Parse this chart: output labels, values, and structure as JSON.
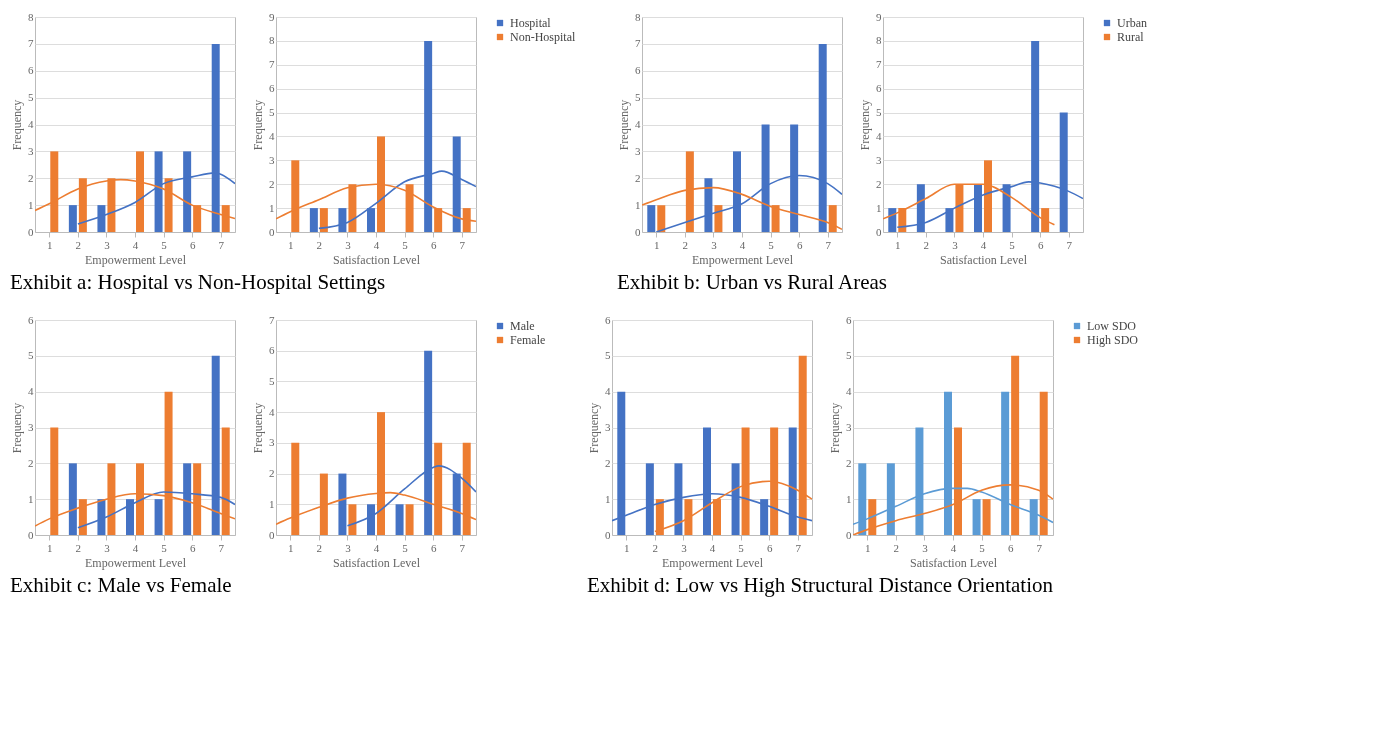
{
  "chart_data": [
    {
      "type": "bar",
      "xlabel": "Empowerment Level",
      "ylabel": "Frequency",
      "x": [
        1,
        2,
        3,
        4,
        5,
        6,
        7
      ],
      "xlim": [
        0.5,
        7.5
      ],
      "xticks": [
        1,
        2,
        3,
        4,
        5,
        6,
        7
      ],
      "ylim": [
        0,
        8
      ],
      "yticks": [
        0,
        1,
        2,
        3,
        4,
        5,
        6,
        7,
        8
      ],
      "grid": "y",
      "annotations": [
        "Exhibit a: Hospital vs Non-Hospital Settings"
      ],
      "series": [
        {
          "color": "#4472c4",
          "values": [
            null,
            1,
            1,
            null,
            3,
            3,
            7
          ]
        },
        {
          "color": "#ed7d31",
          "values": [
            3,
            2,
            2,
            3,
            2,
            1,
            1
          ]
        },
        {
          "type": "line",
          "color": "#4472c4",
          "x": [
            2,
            3,
            4,
            5,
            6,
            6.8,
            7,
            7.5
          ],
          "values": [
            0.3,
            0.65,
            1.1,
            1.8,
            2.05,
            2.2,
            2.15,
            1.8
          ]
        },
        {
          "type": "line",
          "color": "#ed7d31",
          "x": [
            0.5,
            1,
            2,
            3,
            3.5,
            4,
            5,
            6,
            7,
            7.5
          ],
          "values": [
            0.8,
            1.05,
            1.6,
            1.9,
            1.95,
            1.9,
            1.6,
            1.0,
            0.65,
            0.5
          ]
        }
      ]
    },
    {
      "type": "bar",
      "xlabel": "Satisfaction Level",
      "ylabel": "Frequency",
      "x": [
        1,
        2,
        3,
        4,
        5,
        6,
        7
      ],
      "xlim": [
        0.5,
        7.5
      ],
      "xticks": [
        1,
        2,
        3,
        4,
        5,
        6,
        7
      ],
      "ylim": [
        0,
        9
      ],
      "yticks": [
        0,
        1,
        2,
        3,
        4,
        5,
        6,
        7,
        8,
        9
      ],
      "grid": "y",
      "legend": "right",
      "series": [
        {
          "name": "Hospital",
          "color": "#4472c4",
          "values": [
            null,
            1,
            1,
            1,
            null,
            8,
            4
          ]
        },
        {
          "name": "Non-Hospital",
          "color": "#ed7d31",
          "values": [
            3,
            1,
            2,
            4,
            2,
            1,
            1
          ]
        },
        {
          "type": "line",
          "color": "#4472c4",
          "x": [
            2,
            3,
            4,
            5,
            6,
            6.3,
            7,
            7.5
          ],
          "values": [
            0.15,
            0.4,
            1.2,
            2.1,
            2.45,
            2.55,
            2.2,
            1.9
          ]
        },
        {
          "type": "line",
          "color": "#ed7d31",
          "x": [
            0.5,
            1,
            2,
            3,
            4,
            5,
            6,
            7,
            7.5
          ],
          "values": [
            0.55,
            0.85,
            1.35,
            1.85,
            2.0,
            1.75,
            1.05,
            0.55,
            0.45
          ]
        }
      ]
    },
    {
      "type": "bar",
      "xlabel": "Empowerment Level",
      "ylabel": "Frequency",
      "x": [
        1,
        2,
        3,
        4,
        5,
        6,
        7
      ],
      "xlim": [
        0.5,
        7.5
      ],
      "xticks": [
        1,
        2,
        3,
        4,
        5,
        6,
        7
      ],
      "ylim": [
        0,
        8
      ],
      "yticks": [
        0,
        1,
        2,
        3,
        4,
        5,
        6,
        7,
        8
      ],
      "grid": "y",
      "annotations": [
        "Exhibit b: Urban vs Rural Areas"
      ],
      "series": [
        {
          "color": "#4472c4",
          "values": [
            1,
            null,
            2,
            3,
            4,
            4,
            7
          ]
        },
        {
          "color": "#ed7d31",
          "values": [
            1,
            3,
            1,
            null,
            1,
            null,
            1
          ]
        },
        {
          "type": "line",
          "color": "#4472c4",
          "x": [
            1,
            2,
            3,
            4,
            5,
            6,
            7,
            7.5
          ],
          "values": [
            0.0,
            0.35,
            0.7,
            1.05,
            1.8,
            2.1,
            1.8,
            1.4
          ]
        },
        {
          "type": "line",
          "color": "#ed7d31",
          "x": [
            0.5,
            1,
            2,
            3,
            4,
            5,
            6,
            7,
            7.5
          ],
          "values": [
            1.0,
            1.2,
            1.55,
            1.65,
            1.4,
            0.95,
            0.65,
            0.35,
            0.1
          ]
        }
      ]
    },
    {
      "type": "bar",
      "xlabel": "Satisfaction Level",
      "ylabel": "Frequency",
      "x": [
        1,
        2,
        3,
        4,
        5,
        6,
        7
      ],
      "xlim": [
        0.5,
        7.5
      ],
      "xticks": [
        1,
        2,
        3,
        4,
        5,
        6,
        7
      ],
      "ylim": [
        0,
        9
      ],
      "yticks": [
        0,
        1,
        2,
        3,
        4,
        5,
        6,
        7,
        8,
        9
      ],
      "grid": "y",
      "legend": "right",
      "series": [
        {
          "name": "Urban",
          "color": "#4472c4",
          "values": [
            1,
            2,
            1,
            2,
            2,
            8,
            5
          ]
        },
        {
          "name": "Rural",
          "color": "#ed7d31",
          "values": [
            1,
            null,
            2,
            3,
            null,
            1,
            null
          ]
        },
        {
          "type": "line",
          "color": "#4472c4",
          "x": [
            1,
            2,
            3,
            4,
            5,
            5.6,
            6,
            7,
            7.5
          ],
          "values": [
            0.2,
            0.4,
            1.0,
            1.55,
            1.9,
            2.1,
            2.05,
            1.7,
            1.4
          ]
        },
        {
          "type": "line",
          "color": "#ed7d31",
          "x": [
            0.5,
            1,
            2,
            3,
            4,
            5,
            6,
            6.5
          ],
          "values": [
            0.55,
            0.8,
            1.4,
            2.0,
            2.0,
            1.45,
            0.6,
            0.3
          ]
        }
      ]
    },
    {
      "type": "bar",
      "xlabel": "Empowerment Level",
      "ylabel": "Frequency",
      "x": [
        1,
        2,
        3,
        4,
        5,
        6,
        7
      ],
      "xlim": [
        0.5,
        7.5
      ],
      "xticks": [
        1,
        2,
        3,
        4,
        5,
        6,
        7
      ],
      "ylim": [
        0,
        6
      ],
      "yticks": [
        0,
        1,
        2,
        3,
        4,
        5,
        6
      ],
      "grid": "y",
      "annotations": [
        "Exhibit c: Male vs Female"
      ],
      "series": [
        {
          "color": "#4472c4",
          "values": [
            null,
            2,
            1,
            1,
            1,
            2,
            5
          ]
        },
        {
          "color": "#ed7d31",
          "values": [
            3,
            1,
            2,
            2,
            4,
            2,
            3
          ]
        },
        {
          "type": "line",
          "color": "#4472c4",
          "x": [
            2,
            3,
            4,
            5,
            6,
            7,
            7.5
          ],
          "values": [
            0.2,
            0.5,
            0.9,
            1.2,
            1.15,
            1.05,
            0.85
          ]
        },
        {
          "type": "line",
          "color": "#ed7d31",
          "x": [
            0.5,
            1,
            2,
            3,
            4,
            5,
            6,
            7,
            7.5
          ],
          "values": [
            0.25,
            0.45,
            0.75,
            1.0,
            1.15,
            1.1,
            0.9,
            0.6,
            0.45
          ]
        }
      ]
    },
    {
      "type": "bar",
      "xlabel": "Satisfaction Level",
      "ylabel": "Frequency",
      "x": [
        1,
        2,
        3,
        4,
        5,
        6,
        7
      ],
      "xlim": [
        0.5,
        7.5
      ],
      "xticks": [
        1,
        2,
        3,
        4,
        5,
        6,
        7
      ],
      "ylim": [
        0,
        7
      ],
      "yticks": [
        0,
        1,
        2,
        3,
        4,
        5,
        6,
        7
      ],
      "grid": "y",
      "legend": "right",
      "series": [
        {
          "name": "Male",
          "color": "#4472c4",
          "values": [
            null,
            null,
            2,
            1,
            1,
            6,
            2
          ]
        },
        {
          "name": "Female",
          "color": "#ed7d31",
          "values": [
            3,
            2,
            1,
            4,
            1,
            3,
            3
          ]
        },
        {
          "type": "line",
          "color": "#4472c4",
          "x": [
            3,
            4,
            5,
            6,
            6.2,
            7,
            7.5
          ],
          "values": [
            0.3,
            0.7,
            1.5,
            2.2,
            2.25,
            1.85,
            1.4
          ]
        },
        {
          "type": "line",
          "color": "#ed7d31",
          "x": [
            0.5,
            1,
            2,
            3,
            4,
            4.5,
            5,
            6,
            7,
            7.5
          ],
          "values": [
            0.35,
            0.55,
            0.9,
            1.2,
            1.35,
            1.38,
            1.3,
            1.0,
            0.7,
            0.5
          ]
        }
      ]
    },
    {
      "type": "bar",
      "xlabel": "Empowerment Level",
      "ylabel": "Frequency",
      "x": [
        1,
        2,
        3,
        4,
        5,
        6,
        7
      ],
      "xlim": [
        0.5,
        7.5
      ],
      "xticks": [
        1,
        2,
        3,
        4,
        5,
        6,
        7
      ],
      "ylim": [
        0,
        6
      ],
      "yticks": [
        0,
        1,
        2,
        3,
        4,
        5,
        6
      ],
      "grid": "y",
      "annotations": [
        "Exhibit d: Low vs High Structural Distance Orientation"
      ],
      "series": [
        {
          "color": "#4472c4",
          "values": [
            4,
            2,
            2,
            3,
            2,
            1,
            3
          ]
        },
        {
          "color": "#ed7d31",
          "values": [
            null,
            1,
            1,
            1,
            3,
            3,
            5
          ]
        },
        {
          "type": "line",
          "color": "#4472c4",
          "x": [
            0.5,
            1,
            2,
            3,
            4,
            5,
            6,
            7,
            7.5
          ],
          "values": [
            0.4,
            0.55,
            0.85,
            1.05,
            1.15,
            1.05,
            0.8,
            0.5,
            0.4
          ]
        },
        {
          "type": "line",
          "color": "#ed7d31",
          "x": [
            2,
            3,
            4,
            5,
            6,
            7,
            7.5
          ],
          "values": [
            0.1,
            0.4,
            0.9,
            1.35,
            1.5,
            1.25,
            1.0
          ]
        }
      ]
    },
    {
      "type": "bar",
      "xlabel": "Satisfaction Level",
      "ylabel": "Frequency",
      "x": [
        1,
        2,
        3,
        4,
        5,
        6,
        7
      ],
      "xlim": [
        0.5,
        7.5
      ],
      "xticks": [
        1,
        2,
        3,
        4,
        5,
        6,
        7
      ],
      "ylim": [
        0,
        6
      ],
      "yticks": [
        0,
        1,
        2,
        3,
        4,
        5,
        6
      ],
      "grid": "y",
      "legend": "right",
      "series": [
        {
          "name": "Low SDO",
          "color": "#5b9bd5",
          "values": [
            2,
            2,
            3,
            4,
            1,
            4,
            1
          ]
        },
        {
          "name": "High SDO",
          "color": "#ed7d31",
          "values": [
            1,
            null,
            null,
            3,
            1,
            5,
            4
          ]
        },
        {
          "type": "line",
          "color": "#5b9bd5",
          "x": [
            0.5,
            1,
            2,
            3,
            4,
            4.5,
            5,
            6,
            7,
            7.5
          ],
          "values": [
            0.3,
            0.45,
            0.8,
            1.15,
            1.3,
            1.3,
            1.2,
            0.85,
            0.55,
            0.35
          ]
        },
        {
          "type": "line",
          "color": "#ed7d31",
          "x": [
            0.5,
            1,
            2,
            3,
            4,
            5,
            6,
            7,
            7.5
          ],
          "values": [
            0.0,
            0.15,
            0.4,
            0.6,
            0.85,
            1.25,
            1.4,
            1.25,
            1.0
          ]
        }
      ]
    }
  ]
}
